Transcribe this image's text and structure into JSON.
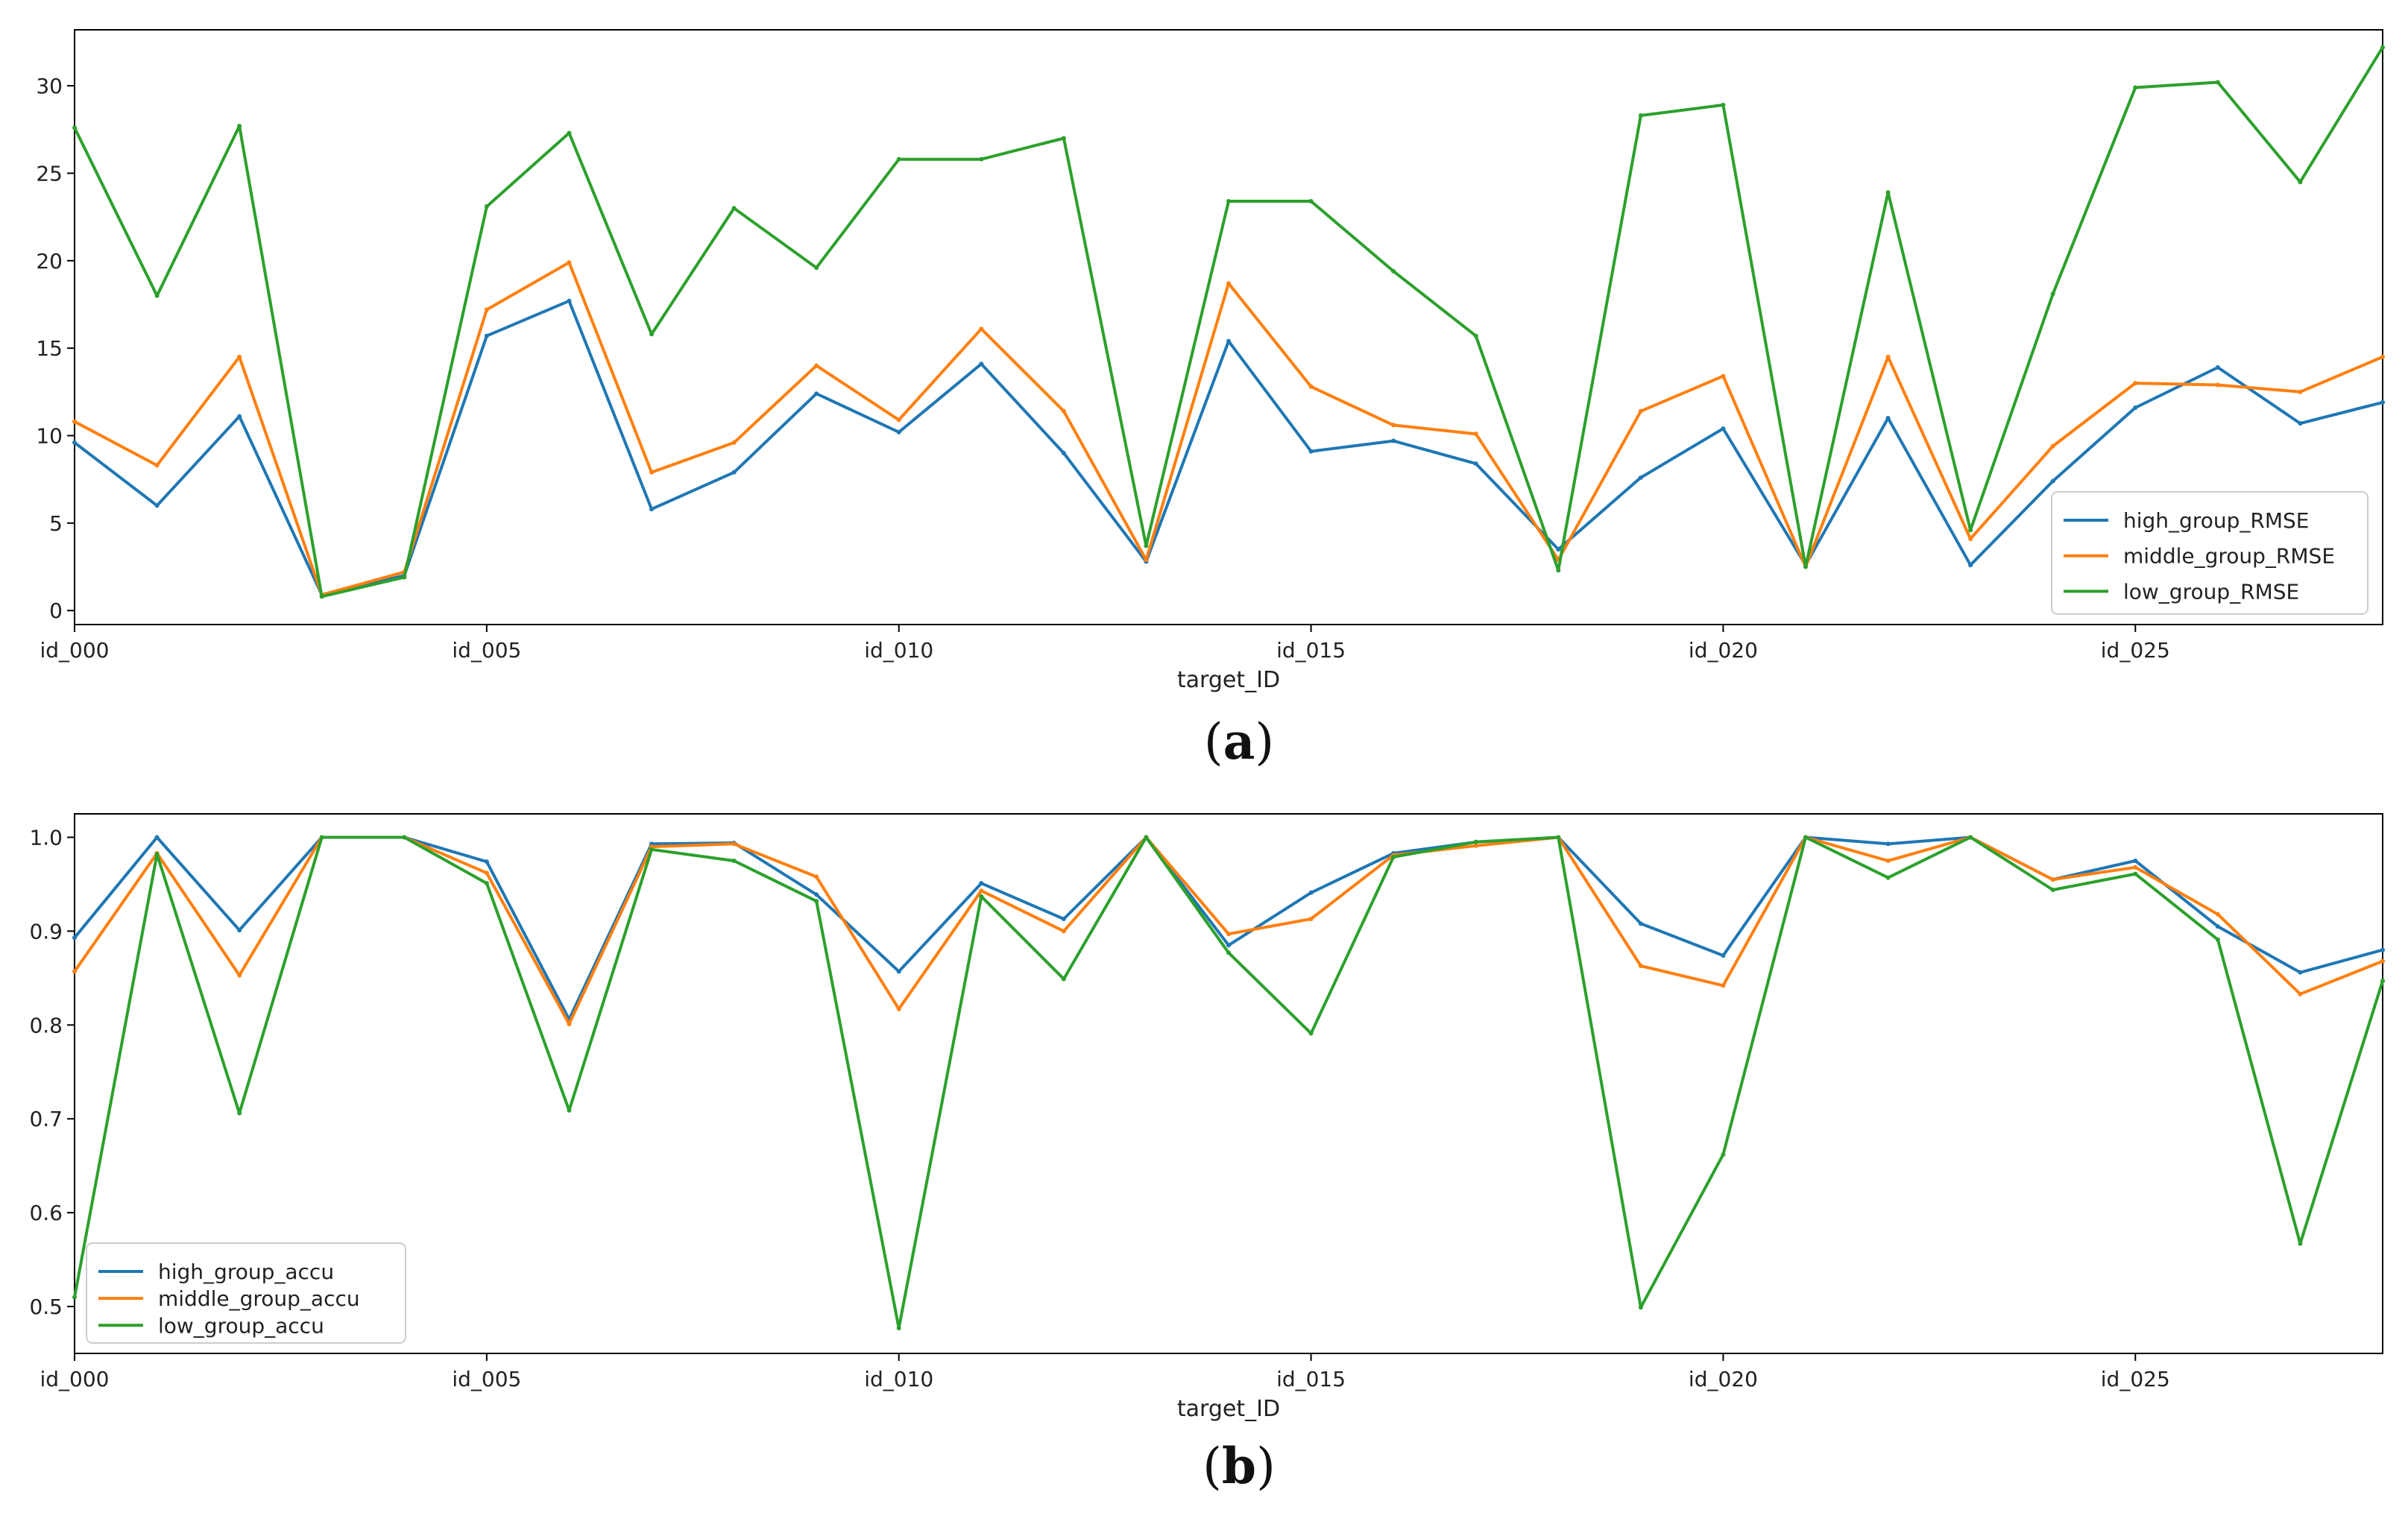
{
  "chart_data": [
    {
      "type": "line",
      "caption_letter": "a",
      "xlabel": "target_ID",
      "ylabel": "",
      "title": "",
      "ylim": [
        -0.8,
        33.2
      ],
      "yticks": [
        0,
        5,
        10,
        15,
        20,
        25,
        30
      ],
      "x_tick_labels": [
        "id_000",
        "id_005",
        "id_010",
        "id_015",
        "id_020",
        "id_025"
      ],
      "x": [
        "id_000",
        "id_001",
        "id_002",
        "id_003",
        "id_004",
        "id_005",
        "id_006",
        "id_007",
        "id_008",
        "id_009",
        "id_010",
        "id_011",
        "id_012",
        "id_013",
        "id_014",
        "id_015",
        "id_016",
        "id_017",
        "id_018",
        "id_019",
        "id_020",
        "id_021",
        "id_022",
        "id_023",
        "id_024",
        "id_025",
        "id_026",
        "id_027",
        "id_028"
      ],
      "legend_position": "lower-right",
      "grid": false,
      "series": [
        {
          "name": "high_group_RMSE",
          "color": "#1f77b4",
          "values": [
            9.6,
            6.0,
            11.1,
            0.9,
            2.0,
            15.7,
            17.7,
            5.8,
            7.9,
            12.4,
            10.2,
            14.1,
            9.0,
            2.8,
            15.4,
            9.1,
            9.7,
            8.4,
            3.5,
            7.6,
            10.4,
            2.6,
            11.0,
            2.6,
            7.4,
            11.6,
            13.9,
            10.7,
            11.9
          ]
        },
        {
          "name": "middle_group_RMSE",
          "color": "#ff7f0e",
          "values": [
            10.8,
            8.3,
            14.5,
            0.9,
            2.2,
            17.2,
            19.9,
            7.9,
            9.6,
            14.0,
            10.9,
            16.1,
            11.4,
            2.9,
            18.7,
            12.8,
            10.6,
            10.1,
            2.9,
            11.4,
            13.4,
            2.5,
            14.5,
            4.1,
            9.4,
            13.0,
            12.9,
            12.5,
            14.5
          ]
        },
        {
          "name": "low_group_RMSE",
          "color": "#2ca02c",
          "values": [
            27.6,
            18.0,
            27.7,
            0.8,
            1.9,
            23.1,
            27.3,
            15.8,
            23.0,
            19.6,
            25.8,
            25.8,
            27.0,
            3.7,
            23.4,
            23.4,
            19.4,
            15.7,
            2.3,
            28.3,
            28.9,
            2.5,
            23.9,
            4.6,
            18.1,
            29.9,
            30.2,
            24.5,
            32.2
          ]
        }
      ]
    },
    {
      "type": "line",
      "caption_letter": "b",
      "xlabel": "target_ID",
      "ylabel": "",
      "title": "",
      "ylim": [
        0.45,
        1.025
      ],
      "yticks": [
        0.5,
        0.6,
        0.7,
        0.8,
        0.9,
        1.0
      ],
      "ytick_labels": [
        "0.5",
        "0.6",
        "0.7",
        "0.8",
        "0.9",
        "1.0"
      ],
      "x_tick_labels": [
        "id_000",
        "id_005",
        "id_010",
        "id_015",
        "id_020",
        "id_025"
      ],
      "x": [
        "id_000",
        "id_001",
        "id_002",
        "id_003",
        "id_004",
        "id_005",
        "id_006",
        "id_007",
        "id_008",
        "id_009",
        "id_010",
        "id_011",
        "id_012",
        "id_013",
        "id_014",
        "id_015",
        "id_016",
        "id_017",
        "id_018",
        "id_019",
        "id_020",
        "id_021",
        "id_022",
        "id_023",
        "id_024",
        "id_025",
        "id_026",
        "id_027",
        "id_028"
      ],
      "legend_position": "lower-left",
      "grid": false,
      "series": [
        {
          "name": "high_group_accu",
          "color": "#1f77b4",
          "values": [
            0.893,
            1.0,
            0.901,
            1.0,
            1.0,
            0.974,
            0.806,
            0.993,
            0.994,
            0.939,
            0.857,
            0.951,
            0.913,
            1.0,
            0.885,
            0.941,
            0.983,
            0.995,
            1.0,
            0.908,
            0.874,
            1.0,
            0.993,
            1.0,
            0.955,
            0.975,
            0.905,
            0.856,
            0.88
          ]
        },
        {
          "name": "middle_group_accu",
          "color": "#ff7f0e",
          "values": [
            0.857,
            0.983,
            0.853,
            1.0,
            1.0,
            0.962,
            0.801,
            0.99,
            0.993,
            0.958,
            0.817,
            0.943,
            0.9,
            1.0,
            0.897,
            0.913,
            0.981,
            0.991,
            1.0,
            0.863,
            0.842,
            1.0,
            0.975,
            1.0,
            0.955,
            0.968,
            0.918,
            0.833,
            0.868
          ]
        },
        {
          "name": "low_group_accu",
          "color": "#2ca02c",
          "values": [
            0.51,
            0.982,
            0.706,
            1.0,
            1.0,
            0.951,
            0.709,
            0.987,
            0.975,
            0.932,
            0.477,
            0.937,
            0.849,
            1.0,
            0.877,
            0.791,
            0.979,
            0.995,
            1.0,
            0.499,
            0.662,
            1.0,
            0.957,
            1.0,
            0.944,
            0.961,
            0.891,
            0.567,
            0.847
          ]
        }
      ]
    }
  ]
}
